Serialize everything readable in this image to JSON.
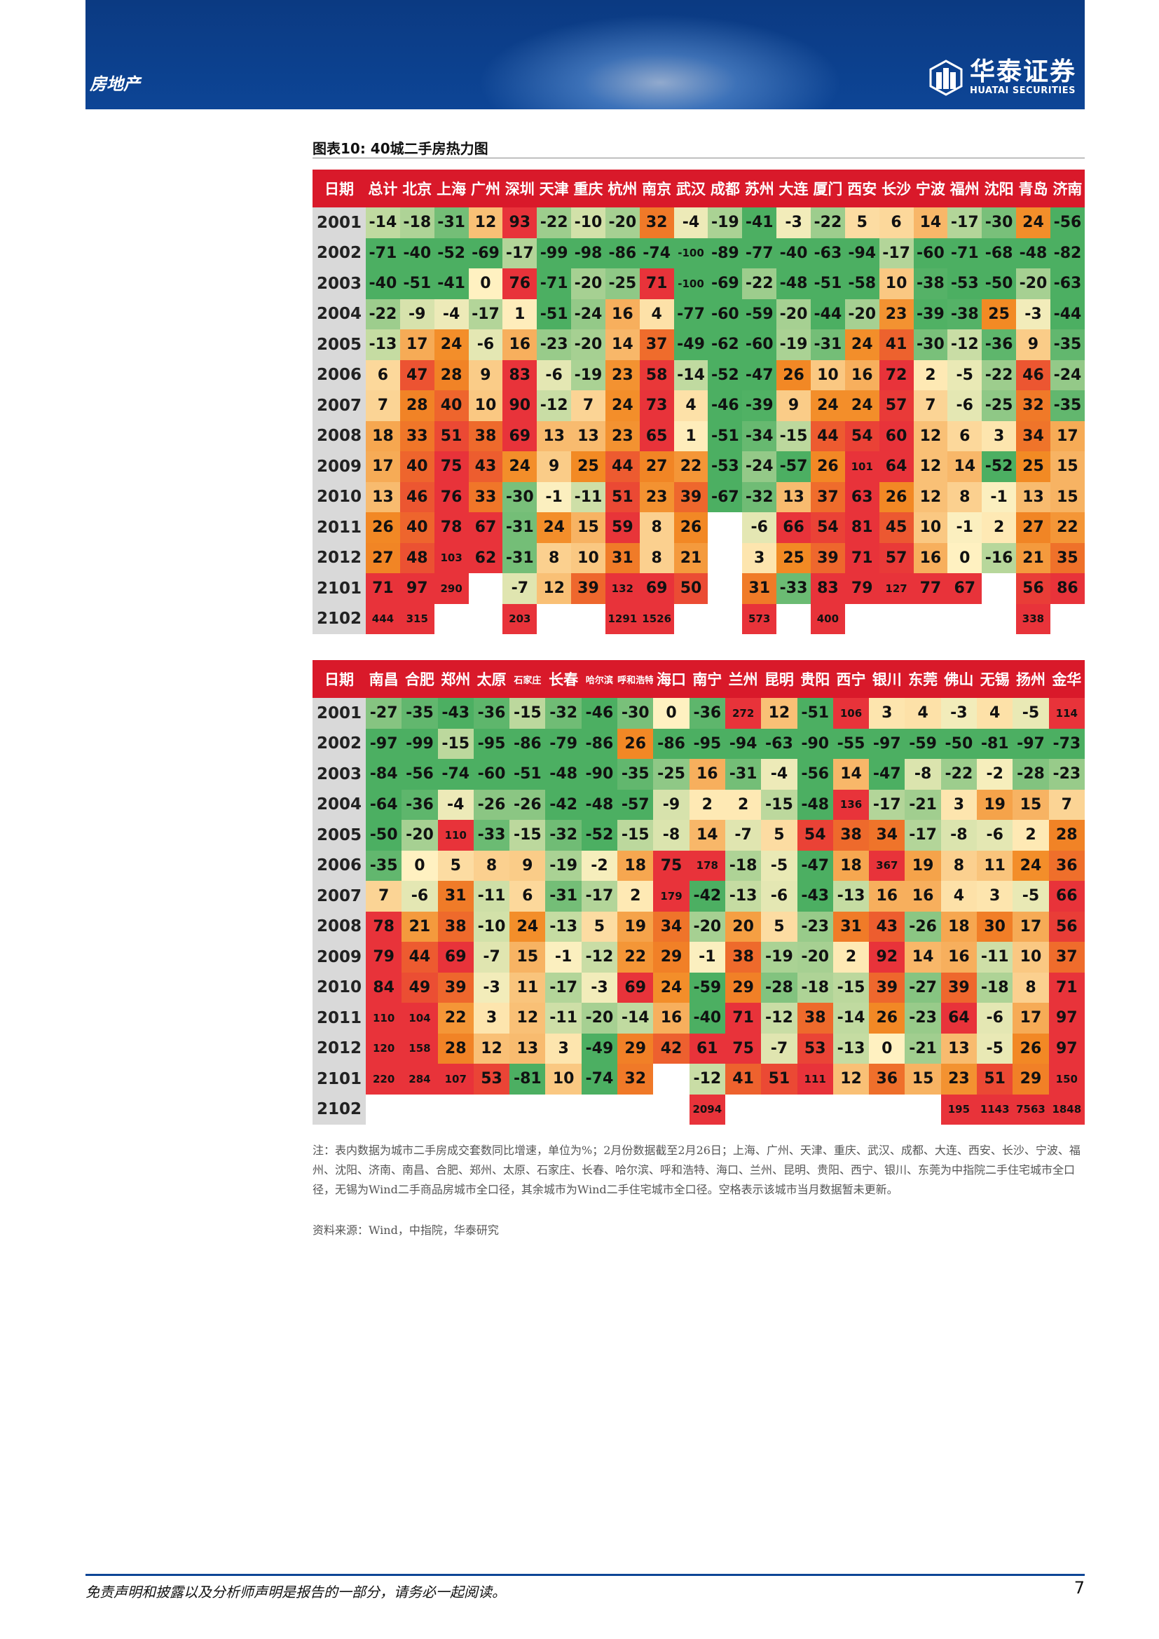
{
  "header": {
    "sector": "房地产",
    "logo_cn": "华泰证券",
    "logo_en": "HUATAI SECURITIES",
    "brand_color": "#0d4596"
  },
  "figure": {
    "title": "图表10:   40城二手房热力图"
  },
  "table1": {
    "corner": "日期",
    "columns": [
      "总计",
      "北京",
      "上海",
      "广州",
      "深圳",
      "天津",
      "重庆",
      "杭州",
      "南京",
      "武汉",
      "成都",
      "苏州",
      "大连",
      "厦门",
      "西安",
      "长沙",
      "宁波",
      "福州",
      "沈阳",
      "青岛",
      "济南"
    ],
    "rows": [
      {
        "date": "2001",
        "cells": [
          "-14",
          "-18",
          "-31",
          "12",
          "93",
          "-22",
          "-10",
          "-20",
          "32",
          "-4",
          "-19",
          "-41",
          "-3",
          "-22",
          "5",
          "6",
          "14",
          "-17",
          "-30",
          "24",
          "-56"
        ]
      },
      {
        "date": "2002",
        "cells": [
          "-71",
          "-40",
          "-52",
          "-69",
          "-17",
          "-99",
          "-98",
          "-86",
          "-74",
          "-100",
          "-89",
          "-77",
          "-40",
          "-63",
          "-94",
          "-17",
          "-60",
          "-71",
          "-68",
          "-48",
          "-82"
        ]
      },
      {
        "date": "2003",
        "cells": [
          "-40",
          "-51",
          "-41",
          "0",
          "76",
          "-71",
          "-20",
          "-25",
          "71",
          "-100",
          "-69",
          "-22",
          "-48",
          "-51",
          "-58",
          "10",
          "-38",
          "-53",
          "-50",
          "-20",
          "-63"
        ]
      },
      {
        "date": "2004",
        "cells": [
          "-22",
          "-9",
          "-4",
          "-17",
          "1",
          "-51",
          "-24",
          "16",
          "4",
          "-77",
          "-60",
          "-59",
          "-20",
          "-44",
          "-20",
          "23",
          "-39",
          "-38",
          "25",
          "-3",
          "-44"
        ]
      },
      {
        "date": "2005",
        "cells": [
          "-13",
          "17",
          "24",
          "-6",
          "16",
          "-23",
          "-20",
          "14",
          "37",
          "-49",
          "-62",
          "-60",
          "-19",
          "-31",
          "24",
          "41",
          "-30",
          "-12",
          "-36",
          "9",
          "-35"
        ]
      },
      {
        "date": "2006",
        "cells": [
          "6",
          "47",
          "28",
          "9",
          "83",
          "-6",
          "-19",
          "23",
          "58",
          "-14",
          "-52",
          "-47",
          "26",
          "10",
          "16",
          "72",
          "2",
          "-5",
          "-22",
          "46",
          "-24"
        ]
      },
      {
        "date": "2007",
        "cells": [
          "7",
          "28",
          "40",
          "10",
          "90",
          "-12",
          "7",
          "24",
          "73",
          "4",
          "-46",
          "-39",
          "9",
          "24",
          "24",
          "57",
          "7",
          "-6",
          "-25",
          "32",
          "-35"
        ]
      },
      {
        "date": "2008",
        "cells": [
          "18",
          "33",
          "51",
          "38",
          "69",
          "13",
          "13",
          "23",
          "65",
          "1",
          "-51",
          "-34",
          "-15",
          "44",
          "54",
          "60",
          "12",
          "6",
          "3",
          "34",
          "17"
        ]
      },
      {
        "date": "2009",
        "cells": [
          "17",
          "40",
          "75",
          "43",
          "24",
          "9",
          "25",
          "44",
          "27",
          "22",
          "-53",
          "-24",
          "-57",
          "26",
          "101",
          "64",
          "12",
          "14",
          "-52",
          "25",
          "15"
        ]
      },
      {
        "date": "2010",
        "cells": [
          "13",
          "46",
          "76",
          "33",
          "-30",
          "-1",
          "-11",
          "51",
          "23",
          "39",
          "-67",
          "-32",
          "13",
          "37",
          "63",
          "26",
          "12",
          "8",
          "-1",
          "13",
          "15"
        ]
      },
      {
        "date": "2011",
        "cells": [
          "26",
          "40",
          "78",
          "67",
          "-31",
          "24",
          "15",
          "59",
          "8",
          "26",
          "",
          "-6",
          "66",
          "54",
          "81",
          "45",
          "10",
          "-1",
          "2",
          "27",
          "22"
        ]
      },
      {
        "date": "2012",
        "cells": [
          "27",
          "48",
          "103",
          "62",
          "-31",
          "8",
          "10",
          "31",
          "8",
          "21",
          "",
          "3",
          "25",
          "39",
          "71",
          "57",
          "16",
          "0",
          "-16",
          "21",
          "35"
        ]
      },
      {
        "date": "2101",
        "cells": [
          "71",
          "97",
          "290",
          "",
          "-7",
          "12",
          "39",
          "132",
          "69",
          "50",
          "",
          "31",
          "-33",
          "83",
          "79",
          "127",
          "77",
          "67",
          "",
          "56",
          "86"
        ]
      },
      {
        "date": "2102",
        "cells": [
          "444",
          "315",
          "",
          "",
          "203",
          "",
          "",
          "1291",
          "1526",
          "",
          "",
          "573",
          "",
          "400",
          "",
          "",
          "",
          "",
          "",
          "338",
          ""
        ]
      }
    ]
  },
  "table2": {
    "corner": "日期",
    "columns": [
      "南昌",
      "合肥",
      "郑州",
      "太原",
      "石家庄",
      "长春",
      "哈尔滨",
      "呼和浩特",
      "海口",
      "南宁",
      "兰州",
      "昆明",
      "贵阳",
      "西宁",
      "银川",
      "东莞",
      "佛山",
      "无锡",
      "扬州",
      "金华"
    ],
    "rows": [
      {
        "date": "2001",
        "cells": [
          "-27",
          "-35",
          "-43",
          "-36",
          "-15",
          "-32",
          "-46",
          "-30",
          "0",
          "-36",
          "272",
          "12",
          "-51",
          "106",
          "3",
          "4",
          "-3",
          "4",
          "-5",
          "114"
        ]
      },
      {
        "date": "2002",
        "cells": [
          "-97",
          "-99",
          "-15",
          "-95",
          "-86",
          "-79",
          "-86",
          "26",
          "-86",
          "-95",
          "-94",
          "-63",
          "-90",
          "-55",
          "-97",
          "-59",
          "-50",
          "-81",
          "-97",
          "-73"
        ]
      },
      {
        "date": "2003",
        "cells": [
          "-84",
          "-56",
          "-74",
          "-60",
          "-51",
          "-48",
          "-90",
          "-35",
          "-25",
          "16",
          "-31",
          "-4",
          "-56",
          "14",
          "-47",
          "-8",
          "-22",
          "-2",
          "-28",
          "-23"
        ]
      },
      {
        "date": "2004",
        "cells": [
          "-64",
          "-36",
          "-4",
          "-26",
          "-26",
          "-42",
          "-48",
          "-57",
          "-9",
          "2",
          "2",
          "-15",
          "-48",
          "136",
          "-17",
          "-21",
          "3",
          "19",
          "15",
          "7"
        ]
      },
      {
        "date": "2005",
        "cells": [
          "-50",
          "-20",
          "110",
          "-33",
          "-15",
          "-32",
          "-52",
          "-15",
          "-8",
          "14",
          "-7",
          "5",
          "54",
          "38",
          "34",
          "-17",
          "-8",
          "-6",
          "2",
          "28"
        ]
      },
      {
        "date": "2006",
        "cells": [
          "-35",
          "0",
          "5",
          "8",
          "9",
          "-19",
          "-2",
          "18",
          "75",
          "178",
          "-18",
          "-5",
          "-47",
          "18",
          "367",
          "19",
          "8",
          "11",
          "24",
          "36"
        ]
      },
      {
        "date": "2007",
        "cells": [
          "7",
          "-6",
          "31",
          "-11",
          "6",
          "-31",
          "-17",
          "2",
          "179",
          "-42",
          "-13",
          "-6",
          "-43",
          "-13",
          "16",
          "16",
          "4",
          "3",
          "-5",
          "66"
        ]
      },
      {
        "date": "2008",
        "cells": [
          "78",
          "21",
          "38",
          "-10",
          "24",
          "-13",
          "5",
          "19",
          "34",
          "-20",
          "20",
          "5",
          "-23",
          "31",
          "43",
          "-26",
          "18",
          "30",
          "17",
          "56"
        ]
      },
      {
        "date": "2009",
        "cells": [
          "79",
          "44",
          "69",
          "-7",
          "15",
          "-1",
          "-12",
          "22",
          "29",
          "-1",
          "38",
          "-19",
          "-20",
          "2",
          "92",
          "14",
          "16",
          "-11",
          "10",
          "37"
        ]
      },
      {
        "date": "2010",
        "cells": [
          "84",
          "49",
          "39",
          "-3",
          "11",
          "-17",
          "-3",
          "69",
          "24",
          "-59",
          "29",
          "-28",
          "-18",
          "-15",
          "39",
          "-27",
          "39",
          "-18",
          "8",
          "71"
        ]
      },
      {
        "date": "2011",
        "cells": [
          "110",
          "104",
          "22",
          "3",
          "12",
          "-11",
          "-20",
          "-14",
          "16",
          "-40",
          "71",
          "-12",
          "38",
          "-14",
          "26",
          "-23",
          "64",
          "-6",
          "17",
          "97"
        ]
      },
      {
        "date": "2012",
        "cells": [
          "120",
          "158",
          "28",
          "12",
          "13",
          "3",
          "-49",
          "29",
          "42",
          "61",
          "75",
          "-7",
          "53",
          "-13",
          "0",
          "-21",
          "13",
          "-5",
          "26",
          "97"
        ]
      },
      {
        "date": "2101",
        "cells": [
          "220",
          "284",
          "107",
          "53",
          "-81",
          "10",
          "-74",
          "32",
          "",
          "-12",
          "41",
          "51",
          "111",
          "12",
          "36",
          "15",
          "23",
          "51",
          "29",
          "150"
        ]
      },
      {
        "date": "2102",
        "cells": [
          "",
          "",
          "",
          "",
          "",
          "",
          "",
          "",
          "",
          "2094",
          "",
          "",
          "",
          "",
          "",
          "",
          "195",
          "1143",
          "7563",
          "1848"
        ]
      }
    ]
  },
  "notes": {
    "note": "注：表内数据为城市二手房成交套数同比增速，单位为%；2月份数据截至2月26日；上海、广州、天津、重庆、武汉、成都、大连、西安、长沙、宁波、福州、沈阳、济南、南昌、合肥、郑州、太原、石家庄、长春、哈尔滨、呼和浩特、海口、兰州、昆明、贵阳、西宁、银川、东莞为中指院二手住宅城市全口径，无锡为Wind二手商品房城市全口径，其余城市为Wind二手住宅城市全口径。空格表示该城市当月数据暂未更新。",
    "source": "资料来源：Wind，中指院，华泰研究"
  },
  "footer": {
    "disclaimer": "免责声明和披露以及分析师声明是报告的一部分，请务必一起阅读。",
    "page": "7"
  },
  "colors": {
    "header_red": "#d9192a",
    "date_gray": "#d9d9d9",
    "scale_green": "#4caf62",
    "scale_yellow": "#fff1c1",
    "scale_orange": "#f28a24",
    "scale_red": "#e8333a"
  }
}
